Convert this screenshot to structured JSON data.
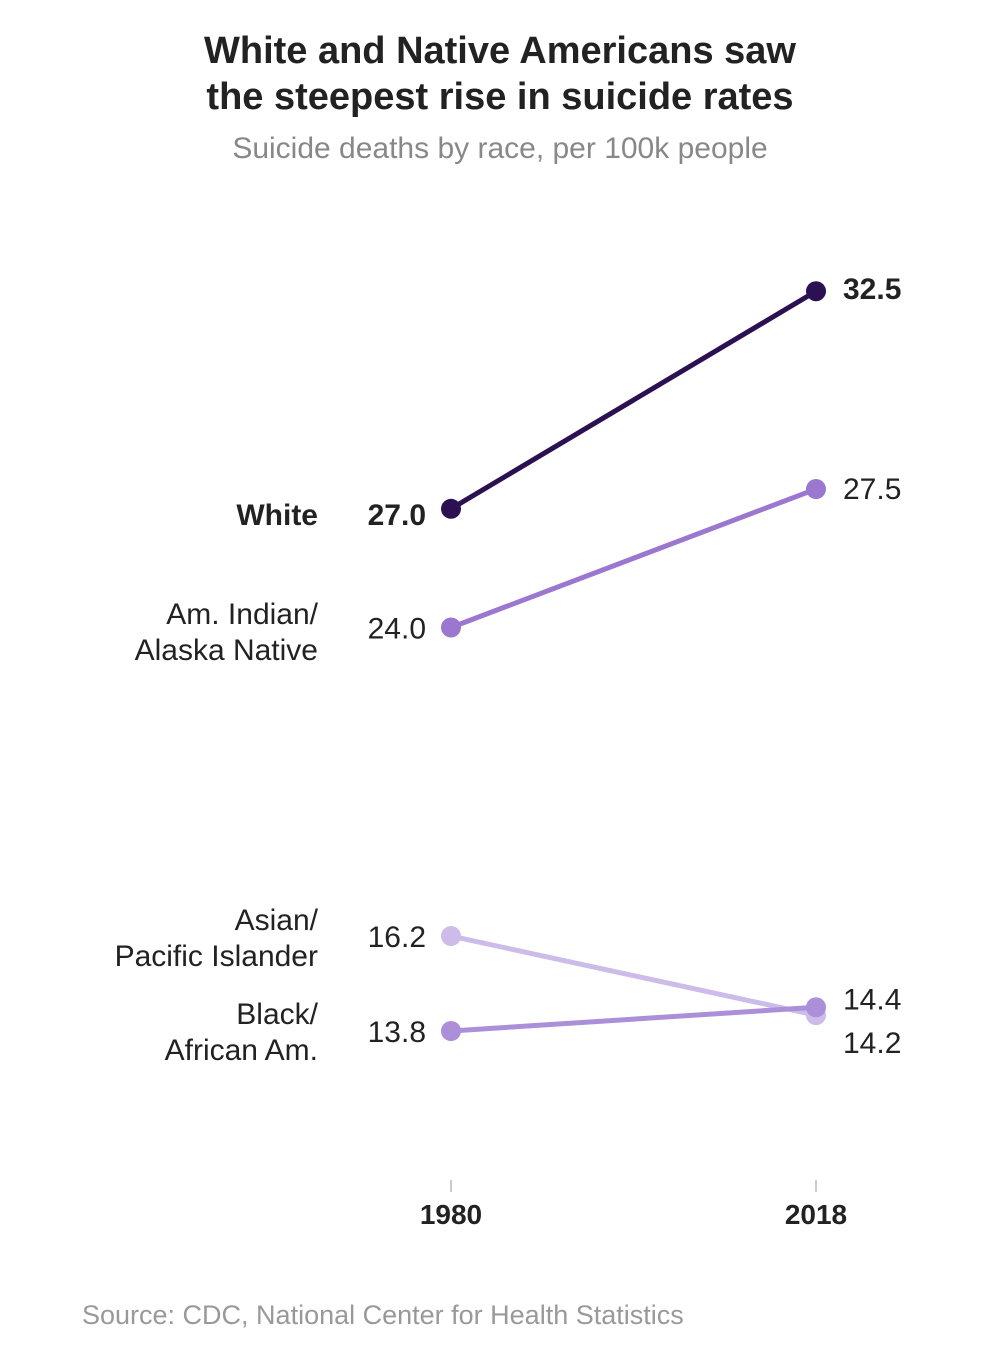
{
  "title_line1": "White and Native Americans saw",
  "title_line2": "the steepest rise in suicide rates",
  "subtitle": "Suicide deaths by race, per 100k people",
  "source": "Source: CDC, National Center for Health Statistics",
  "chart_data": {
    "type": "line",
    "x": [
      "1980",
      "2018"
    ],
    "series": [
      {
        "name": "White",
        "label_lines": [
          "White"
        ],
        "values": [
          27.0,
          32.5
        ],
        "labels": [
          "27.0",
          "32.5"
        ],
        "color": "#2b1152",
        "bold": true
      },
      {
        "name": "Am. Indian/ Alaska Native",
        "label_lines": [
          "Am. Indian/",
          "Alaska Native"
        ],
        "values": [
          24.0,
          27.5
        ],
        "labels": [
          "24.0",
          "27.5"
        ],
        "color": "#9b77d0",
        "bold": false
      },
      {
        "name": "Asian/ Pacific Islander",
        "label_lines": [
          "Asian/",
          "Pacific Islander"
        ],
        "values": [
          16.2,
          14.2
        ],
        "labels": [
          "16.2",
          "14.2"
        ],
        "color": "#cdbbea",
        "bold": false
      },
      {
        "name": "Black/ African Am.",
        "label_lines": [
          "Black/",
          "African Am."
        ],
        "values": [
          13.8,
          14.4
        ],
        "labels": [
          "13.8",
          "14.4"
        ],
        "color": "#ac8fd9",
        "bold": false
      }
    ],
    "grid": false,
    "legend": "none"
  }
}
